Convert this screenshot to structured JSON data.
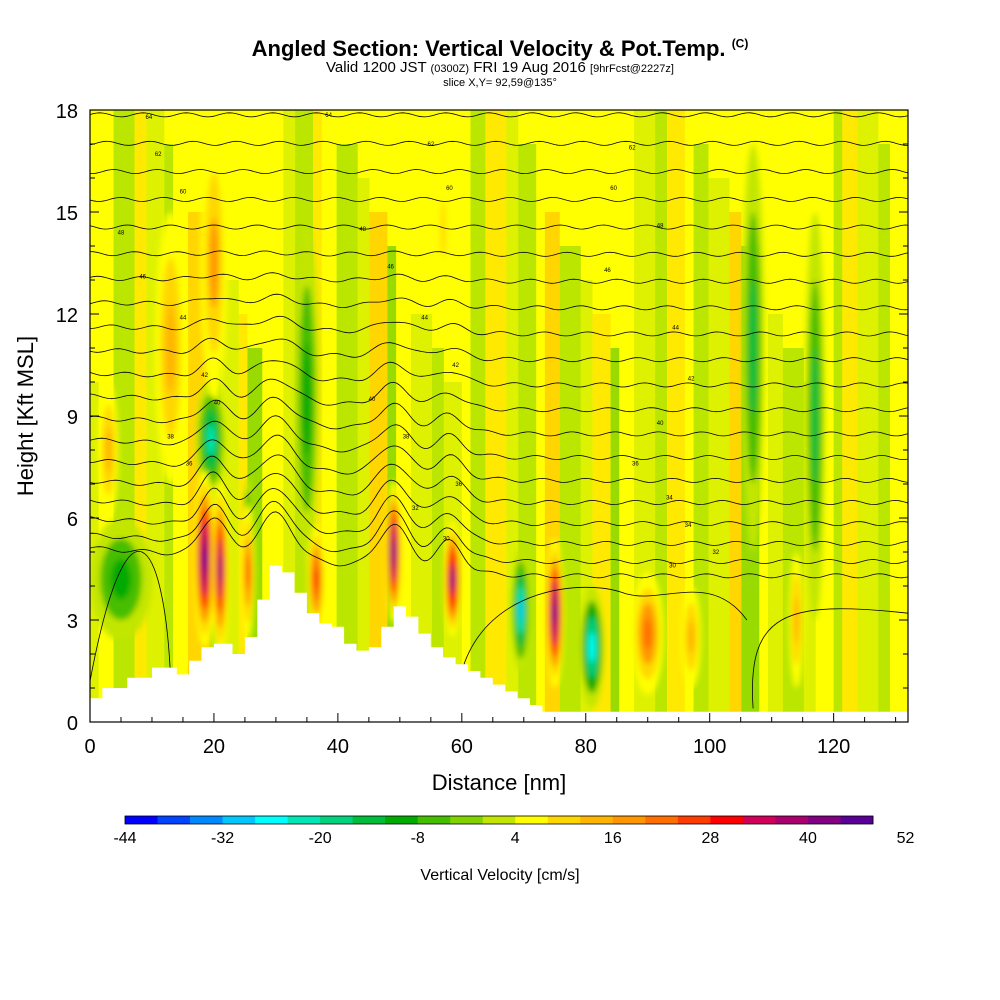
{
  "title": {
    "main": "Angled Section: Vertical Velocity & Pot.Temp.",
    "tag": "(C)",
    "line2_a": "Valid 1200 JST",
    "line2_b": "(0300Z)",
    "line2_c": "FRI 19 Aug 2016",
    "line2_d": "[9hrFcst@2227z]",
    "line3": "slice X,Y= 92,59@135°"
  },
  "chart_data": {
    "type": "heatmap",
    "title": "Angled Section: Vertical Velocity & Pot.Temp.",
    "xlabel": "Distance [nm]",
    "ylabel": "Height [Kft MSL]",
    "xlim": [
      0,
      132
    ],
    "ylim": [
      0,
      18
    ],
    "x_ticks": [
      "0",
      "20",
      "40",
      "60",
      "80",
      "100",
      "120"
    ],
    "x_tick_values": [
      0,
      20,
      40,
      60,
      80,
      100,
      120
    ],
    "y_ticks": [
      "0",
      "3",
      "6",
      "9",
      "12",
      "15",
      "18"
    ],
    "y_tick_values": [
      0,
      3,
      6,
      9,
      12,
      15,
      18
    ],
    "colorbar": {
      "label": "Vertical Velocity [cm/s]",
      "min": -44,
      "step": 4,
      "labels": [
        "-44",
        "-32",
        "-20",
        "-8",
        "4",
        "16",
        "28",
        "40",
        "52"
      ],
      "colors": [
        "#0000ff",
        "#0044ff",
        "#0088ff",
        "#00c8ff",
        "#00ffff",
        "#00e6b4",
        "#00d27d",
        "#00be3c",
        "#00aa00",
        "#46be00",
        "#82d200",
        "#c3e600",
        "#ffff00",
        "#ffd700",
        "#ffb400",
        "#ff9600",
        "#ff6e00",
        "#ff3c00",
        "#ff0000",
        "#d2005a",
        "#aa006e",
        "#820082",
        "#5a0096"
      ]
    },
    "terrain_kft": [
      [
        0,
        0.7
      ],
      [
        2,
        1.0
      ],
      [
        6,
        1.3
      ],
      [
        10,
        1.6
      ],
      [
        14,
        1.4
      ],
      [
        16,
        1.8
      ],
      [
        18,
        2.2
      ],
      [
        20,
        2.3
      ],
      [
        23,
        2.0
      ],
      [
        25,
        2.5
      ],
      [
        27,
        3.6
      ],
      [
        29,
        4.6
      ],
      [
        31,
        4.4
      ],
      [
        33,
        3.8
      ],
      [
        35,
        3.2
      ],
      [
        37,
        2.9
      ],
      [
        39,
        2.8
      ],
      [
        41,
        2.3
      ],
      [
        43,
        2.1
      ],
      [
        45,
        2.2
      ],
      [
        47,
        2.8
      ],
      [
        49,
        3.4
      ],
      [
        51,
        3.1
      ],
      [
        53,
        2.6
      ],
      [
        55,
        2.2
      ],
      [
        57,
        1.9
      ],
      [
        59,
        1.7
      ],
      [
        61,
        1.5
      ],
      [
        63,
        1.3
      ],
      [
        65,
        1.1
      ],
      [
        67,
        0.9
      ],
      [
        69,
        0.7
      ],
      [
        71,
        0.5
      ],
      [
        73,
        0.3
      ],
      [
        132,
        0.3
      ]
    ],
    "updrafts": [
      {
        "x": 18.5,
        "y": 4.8,
        "w": 1.8,
        "h": 2.6,
        "v": 46
      },
      {
        "x": 21,
        "y": 4.5,
        "w": 1.4,
        "h": 2.6,
        "v": 42
      },
      {
        "x": 25.5,
        "y": 4.4,
        "w": 1.1,
        "h": 2.0,
        "v": 24
      },
      {
        "x": 36.5,
        "y": 4.2,
        "w": 1.4,
        "h": 1.6,
        "v": 28
      },
      {
        "x": 49,
        "y": 5.0,
        "w": 1.3,
        "h": 2.1,
        "v": 46
      },
      {
        "x": 58.5,
        "y": 4.2,
        "w": 1.4,
        "h": 1.7,
        "v": 44
      },
      {
        "x": 75,
        "y": 3.2,
        "w": 1.5,
        "h": 2.2,
        "v": 46
      },
      {
        "x": 90,
        "y": 2.6,
        "w": 2.6,
        "h": 1.8,
        "v": 22
      },
      {
        "x": 97,
        "y": 2.5,
        "w": 1.6,
        "h": 1.5,
        "v": 14
      },
      {
        "x": 20,
        "y": 13.5,
        "w": 2.2,
        "h": 4.0,
        "v": 18
      },
      {
        "x": 13,
        "y": 11.0,
        "w": 2.5,
        "h": 4.0,
        "v": 12
      },
      {
        "x": 3,
        "y": 8.0,
        "w": 1.6,
        "h": 2.0,
        "v": 12
      },
      {
        "x": 57,
        "y": 14.5,
        "w": 1.2,
        "h": 2.5,
        "v": 10
      },
      {
        "x": 114,
        "y": 3.0,
        "w": 1.2,
        "h": 2.0,
        "v": 12
      }
    ],
    "downdrafts": [
      {
        "x": 19.5,
        "y": 8.3,
        "w": 2.4,
        "h": 1.8,
        "v": -22
      },
      {
        "x": 25.5,
        "y": 5.6,
        "w": 0.8,
        "h": 1.6,
        "v": -22
      },
      {
        "x": 20,
        "y": 4.6,
        "w": 0.8,
        "h": 1.4,
        "v": -28
      },
      {
        "x": 69.5,
        "y": 3.3,
        "w": 1.5,
        "h": 1.8,
        "v": -30
      },
      {
        "x": 81,
        "y": 2.2,
        "w": 2.0,
        "h": 1.8,
        "v": -26
      },
      {
        "x": 107,
        "y": 11.0,
        "w": 1.8,
        "h": 6.0,
        "v": -16
      },
      {
        "x": 117,
        "y": 9.0,
        "w": 1.6,
        "h": 6.0,
        "v": -14
      },
      {
        "x": 5,
        "y": 4.2,
        "w": 5.0,
        "h": 1.8,
        "v": -12
      },
      {
        "x": 35,
        "y": 9.5,
        "w": 2.0,
        "h": 5.0,
        "v": -10
      }
    ],
    "isentrope_labels": [
      {
        "x": 9.5,
        "y": 17.8,
        "text": "64"
      },
      {
        "x": 38.5,
        "y": 17.85,
        "text": "64"
      },
      {
        "x": 11,
        "y": 16.7,
        "text": "62"
      },
      {
        "x": 55,
        "y": 17.0,
        "text": "62"
      },
      {
        "x": 87.5,
        "y": 16.9,
        "text": "62"
      },
      {
        "x": 15,
        "y": 15.6,
        "text": "60"
      },
      {
        "x": 58,
        "y": 15.7,
        "text": "60"
      },
      {
        "x": 84.5,
        "y": 15.7,
        "text": "60"
      },
      {
        "x": 5,
        "y": 14.4,
        "text": "48"
      },
      {
        "x": 44,
        "y": 14.5,
        "text": "48"
      },
      {
        "x": 92,
        "y": 14.6,
        "text": "48"
      },
      {
        "x": 8.5,
        "y": 13.1,
        "text": "46"
      },
      {
        "x": 48.5,
        "y": 13.4,
        "text": "46"
      },
      {
        "x": 83.5,
        "y": 13.3,
        "text": "46"
      },
      {
        "x": 15,
        "y": 11.9,
        "text": "44"
      },
      {
        "x": 54,
        "y": 11.9,
        "text": "44"
      },
      {
        "x": 94.5,
        "y": 11.6,
        "text": "44"
      },
      {
        "x": 18.5,
        "y": 10.2,
        "text": "42"
      },
      {
        "x": 59,
        "y": 10.5,
        "text": "42"
      },
      {
        "x": 97,
        "y": 10.1,
        "text": "42"
      },
      {
        "x": 20.5,
        "y": 9.4,
        "text": "40"
      },
      {
        "x": 45.5,
        "y": 9.5,
        "text": "40"
      },
      {
        "x": 92,
        "y": 8.8,
        "text": "40"
      },
      {
        "x": 13,
        "y": 8.4,
        "text": "38"
      },
      {
        "x": 51,
        "y": 8.4,
        "text": "38"
      },
      {
        "x": 88,
        "y": 7.6,
        "text": "36"
      },
      {
        "x": 16,
        "y": 7.6,
        "text": "36"
      },
      {
        "x": 59.5,
        "y": 7.0,
        "text": "36"
      },
      {
        "x": 93.5,
        "y": 6.6,
        "text": "34"
      },
      {
        "x": 52.5,
        "y": 6.3,
        "text": "32"
      },
      {
        "x": 96.5,
        "y": 5.8,
        "text": "34"
      },
      {
        "x": 57.5,
        "y": 5.4,
        "text": "30"
      },
      {
        "x": 101,
        "y": 5.0,
        "text": "32"
      },
      {
        "x": 94,
        "y": 4.6,
        "text": "30"
      }
    ]
  }
}
